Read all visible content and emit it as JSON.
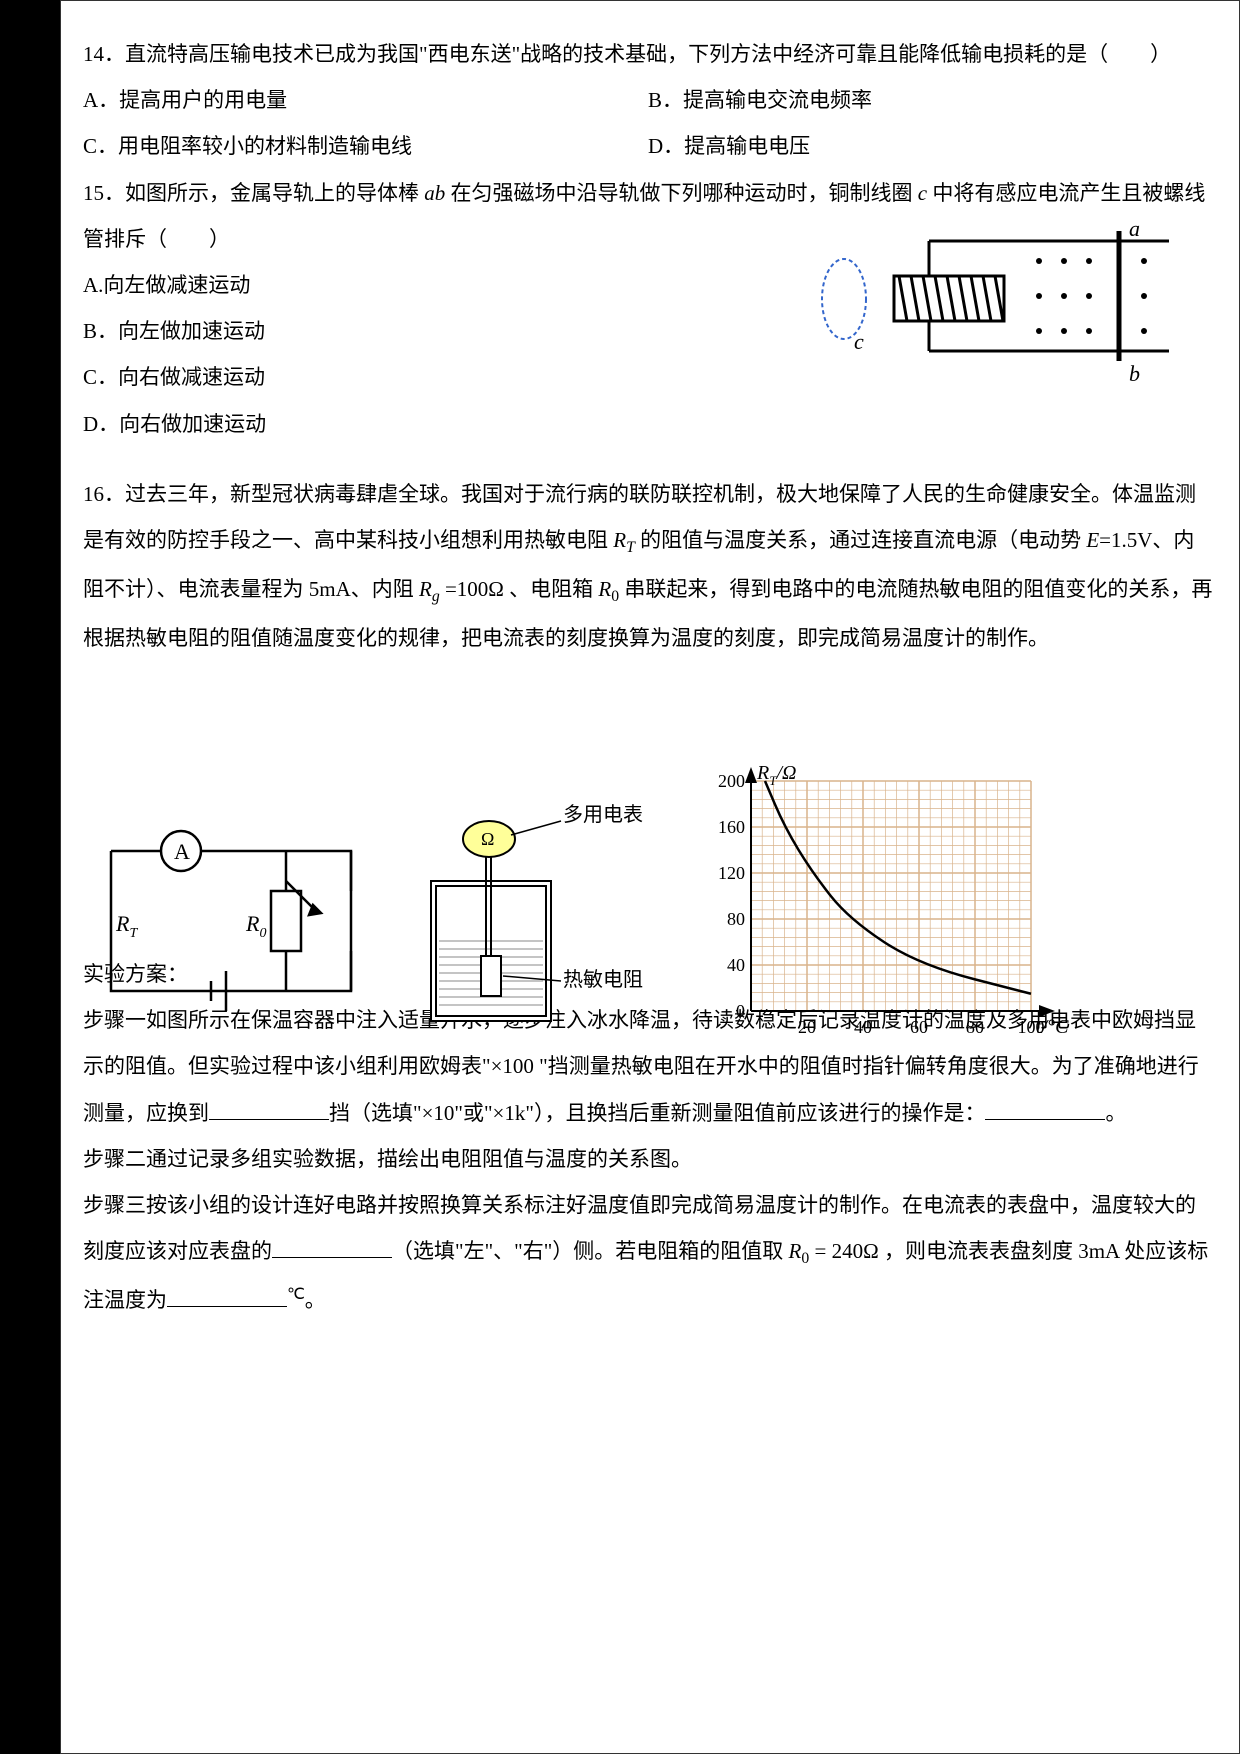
{
  "q14": {
    "stem": "14．直流特高压输电技术已成为我国\"西电东送\"战略的技术基础，下列方法中经济可靠且能降低输电损耗的是（　　）",
    "A": "A．提高用户的用电量",
    "B": "B．提高输电交流电频率",
    "C": "C．用电阻率较小的材料制造输电线",
    "D": "D．提高输电电压"
  },
  "q15": {
    "stem_pre": "15．如图所示，金属导轨上的导体棒 ",
    "ab": "ab",
    "stem_mid": " 在匀强磁场中沿导轨做下列哪种运动时，铜制线圈 ",
    "c": "c",
    "stem_post": " 中将有感应电流产生且被螺线管排斥（　　）",
    "A": " A.向左做减速运动",
    "B": "B．向左做加速运动",
    "C": "C．向右做减速运动",
    "D": "D．向右做加速运动",
    "diagram": {
      "a": "a",
      "b": "b",
      "clabel": "c"
    }
  },
  "q16": {
    "p1_pre": "16．过去三年，新型冠状病毒肆虐全球。我国对于流行病的联防联控机制，极大地保障了人民的生命健康安全。体温监测是有效的防控手段之一、高中某科技小组想利用热敏电阻 ",
    "RT": "R",
    "RT_sub": "T",
    "p1_mid": " 的阻值与温度关系，通过连接直流电源（电动势 ",
    "E": "E",
    "p1_eval": "=1.5V、内阻不计）、电流表量程为 5mA、内阻 ",
    "Rg": "R",
    "Rg_sub": "g",
    "Rg_val": " =100Ω 、电阻箱 ",
    "R0": "R",
    "R0_sub": "0",
    "p1_post": " 串联起来，得到电路中的电流随热敏电阻的阻值变化的关系，再根据热敏电阻的阻值随温度变化的规律，把电流表的刻度换算为温度的刻度，即完成简易温度计的制作。",
    "circuit": {
      "A": "A",
      "RT": "R",
      "RT_sub": "T",
      "R0": "R",
      "R0_sub": "0"
    },
    "thermos": {
      "meter": "多用电表",
      "ohm": "Ω",
      "resistor": "热敏电阻"
    },
    "graph": {
      "ylabel_pre": "R",
      "ylabel_sub": "T",
      "ylabel_post": "/Ω",
      "xlabel_pre": "t",
      "xlabel_post": "/°C",
      "yticks": [
        "0",
        "40",
        "80",
        "120",
        "160",
        "200"
      ],
      "xticks": [
        "20",
        "40",
        "60",
        "80",
        "100"
      ],
      "xlim": [
        0,
        100
      ],
      "ylim": [
        0,
        200
      ],
      "curve": [
        [
          5,
          200
        ],
        [
          12,
          160
        ],
        [
          22,
          120
        ],
        [
          35,
          80
        ],
        [
          60,
          40
        ],
        [
          100,
          15
        ]
      ],
      "axis_color": "#000000",
      "grid_color": "#d9b38c",
      "curve_color": "#000000"
    },
    "plan": "实验方案：",
    "step1_pre": "步骤一如图所示在保温容器中注入适量开水，逐步注入冰水降温，待读数稳定后记录温度计的温度及多用电表中欧姆挡显示的阻值。但实验过程中该小组利用欧姆表\"×100 \"挡测量热敏电阻在开水中的阻值时指针偏转角度很大。为了准确地进行测量，应换到",
    "step1_mid": "挡（选填\"×10\"或\"×1k\"），且换挡后重新测量阻值前应该进行的操作是：",
    "step1_post": "。",
    "step2": "步骤二通过记录多组实验数据，描绘出电阻阻值与温度的关系图。",
    "step3_pre": "步骤三按该小组的设计连好电路并按照换算关系标注好温度值即完成简易温度计的制作。在电流表的表盘中，温度较大的刻度应该对应表盘的",
    "step3_mid1": "（选填\"左\"、\"右\"）侧。若电阻箱的阻值取 ",
    "R0_2": "R",
    "R0_2_sub": "0",
    "R0_2_val": " = 240Ω ，则电流表表盘刻度 3mA 处应该标注温度为",
    "step3_unit": "℃",
    "step3_post": "。"
  }
}
